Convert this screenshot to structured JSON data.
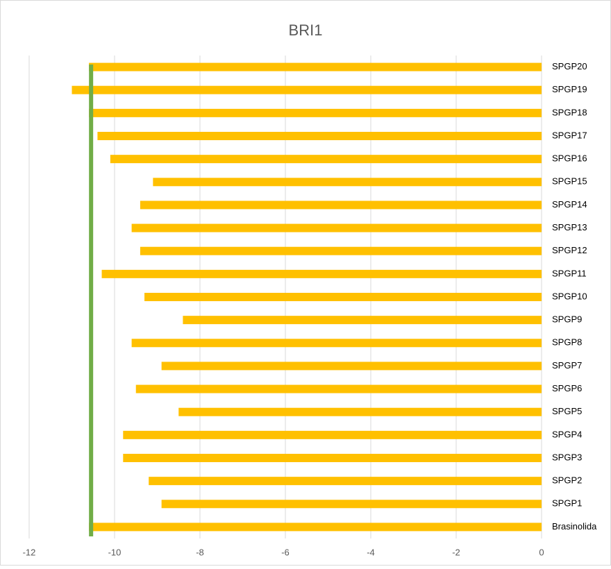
{
  "chart_data": {
    "type": "barh",
    "title": "BRI1",
    "categories": [
      "Brasinolida",
      "SPGP1",
      "SPGP2",
      "SPGP3",
      "SPGP4",
      "SPGP5",
      "SPGP6",
      "SPGP7",
      "SPGP8",
      "SPGP9",
      "SPGP10",
      "SPGP11",
      "SPGP12",
      "SPGP13",
      "SPGP14",
      "SPGP15",
      "SPGP16",
      "SPGP17",
      "SPGP18",
      "SPGP19",
      "SPGP20"
    ],
    "values": [
      -10.6,
      -8.9,
      -9.2,
      -9.8,
      -9.8,
      -8.5,
      -9.5,
      -8.9,
      -9.6,
      -8.4,
      -9.3,
      -10.3,
      -9.4,
      -9.6,
      -9.4,
      -9.1,
      -10.1,
      -10.4,
      -10.6,
      -11.0,
      -10.6
    ],
    "color": "#ffc000",
    "reference_line": {
      "value": -10.55,
      "color": "#70ad47"
    },
    "xlim": [
      -12,
      0
    ],
    "xticks": [
      -12,
      -10,
      -8,
      -6,
      -4,
      -2,
      0
    ],
    "grid": true
  }
}
